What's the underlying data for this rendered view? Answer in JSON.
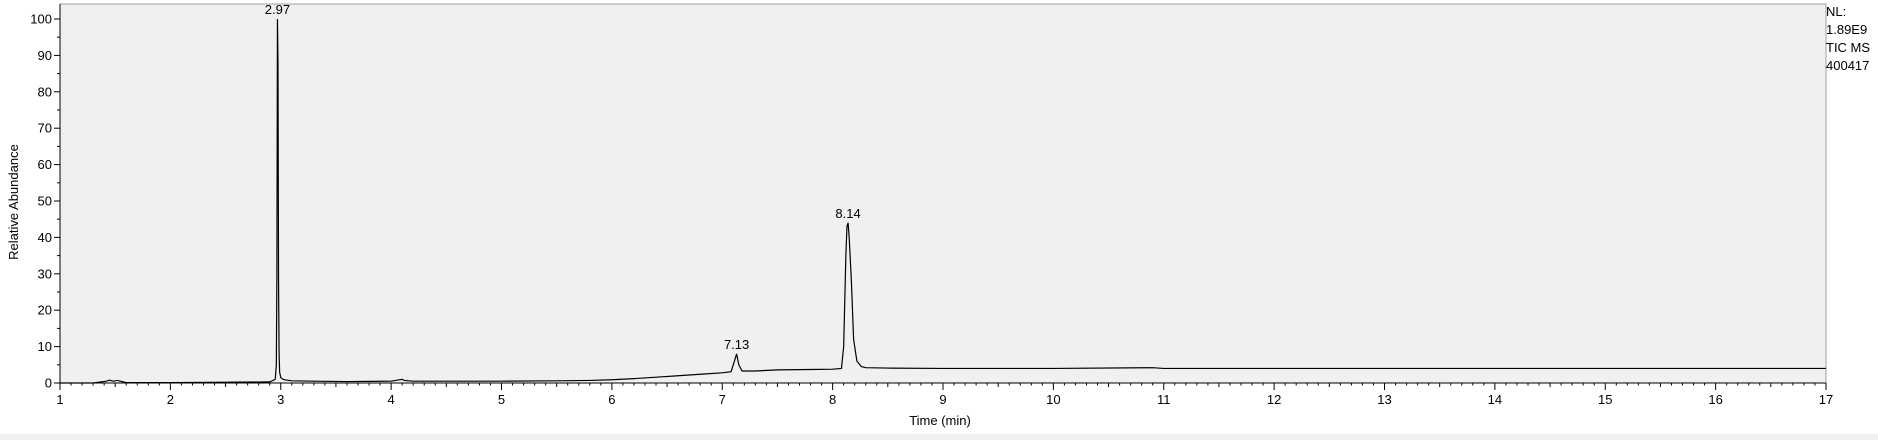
{
  "info_panel": {
    "line1": "NL:",
    "line2": "1.89E9",
    "line3": "TIC  MS",
    "line4": "400417"
  },
  "colors": {
    "plot_background": "#f0f0f0",
    "trace": "#000000"
  },
  "chart_data": {
    "type": "line",
    "title": "",
    "xlabel": "Time (min)",
    "ylabel": "Relative Abundance",
    "xlim": [
      1,
      17
    ],
    "ylim": [
      0,
      100
    ],
    "x_ticks": [
      "1",
      "2",
      "3",
      "4",
      "5",
      "6",
      "7",
      "8",
      "9",
      "10",
      "11",
      "12",
      "13",
      "14",
      "15",
      "16",
      "17"
    ],
    "y_ticks": [
      "0",
      "10",
      "20",
      "30",
      "40",
      "50",
      "60",
      "70",
      "80",
      "90",
      "100"
    ],
    "grid": false,
    "legend": "none",
    "peak_labels": [
      {
        "text": "2.97",
        "x": 2.97,
        "y": 100
      },
      {
        "text": "7.13",
        "x": 7.13,
        "y": 8
      },
      {
        "text": "8.14",
        "x": 8.14,
        "y": 44
      }
    ],
    "series": [
      {
        "x": [
          1.0,
          1.3,
          1.42,
          1.45,
          1.48,
          1.52,
          1.6,
          2.0,
          2.5,
          2.9,
          2.95,
          2.96,
          2.965,
          2.97,
          2.975,
          2.98,
          2.985,
          2.99,
          3.0,
          3.02,
          3.05,
          3.1,
          3.3,
          3.6,
          4.0,
          4.08,
          4.1,
          4.12,
          4.2,
          5.0,
          5.5,
          5.8,
          6.0,
          6.2,
          6.4,
          6.6,
          6.8,
          7.0,
          7.08,
          7.11,
          7.13,
          7.15,
          7.18,
          7.3,
          7.5,
          7.8,
          8.0,
          8.08,
          8.1,
          8.12,
          8.13,
          8.14,
          8.15,
          8.17,
          8.19,
          8.22,
          8.26,
          8.3,
          8.5,
          9.0,
          10.0,
          10.9,
          11.0,
          12.0,
          13.0,
          14.0,
          15.0,
          16.0,
          17.0
        ],
        "y": [
          0.0,
          0.0,
          0.5,
          0.8,
          0.5,
          0.7,
          0.1,
          0.1,
          0.2,
          0.3,
          1.0,
          5,
          30,
          100,
          88,
          28,
          8,
          3,
          1.5,
          1.0,
          0.8,
          0.6,
          0.5,
          0.4,
          0.5,
          0.9,
          1.0,
          0.7,
          0.5,
          0.5,
          0.6,
          0.7,
          0.9,
          1.2,
          1.6,
          2.0,
          2.4,
          2.8,
          3.1,
          6,
          8,
          5,
          3.3,
          3.3,
          3.6,
          3.7,
          3.8,
          4.0,
          10,
          35,
          43,
          44,
          40,
          28,
          12,
          6,
          4.5,
          4.2,
          4.1,
          4.0,
          4.0,
          4.2,
          4.0,
          4.0,
          4.0,
          4.0,
          4.0,
          4.0,
          4.0
        ]
      }
    ]
  }
}
